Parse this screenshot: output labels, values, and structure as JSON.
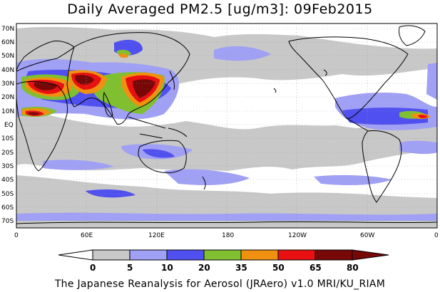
{
  "title": "Daily Averaged PM2.5 [ug/m3]: 09Feb2015",
  "footer": "The Japanese Reanalysis for Aerosol (JRAero) v1.0 MRI/KU_RIAM",
  "lat_labels": [
    "70N",
    "60N",
    "50N",
    "40N",
    "30N",
    "20N",
    "10N",
    "EQ",
    "10S",
    "20S",
    "30S",
    "40S",
    "50S",
    "60S",
    "70S"
  ],
  "lon_labels": [
    "0",
    "60E",
    "120E",
    "180",
    "120W",
    "60W",
    "0"
  ],
  "colorbar": {
    "ticks": [
      "0",
      "5",
      "10",
      "20",
      "35",
      "50",
      "65",
      "80"
    ],
    "colors": [
      "#ffffff",
      "#c8c8c8",
      "#a0a0f5",
      "#5050f0",
      "#80c030",
      "#f09010",
      "#e81010",
      "#780808"
    ],
    "units": "ug/m3"
  },
  "map": {
    "lat_range": [
      -75,
      75
    ],
    "lon_range": [
      0,
      360
    ],
    "region_colors": {
      "background": "#ffffff",
      "level_5_10": "#c8c8c8",
      "level_10_20": "#a0a0f5",
      "level_20_35": "#5050f0",
      "level_35_50": "#80c030",
      "level_50_65": "#f09010",
      "level_65_80": "#e81010",
      "level_80_plus": "#780808"
    }
  }
}
